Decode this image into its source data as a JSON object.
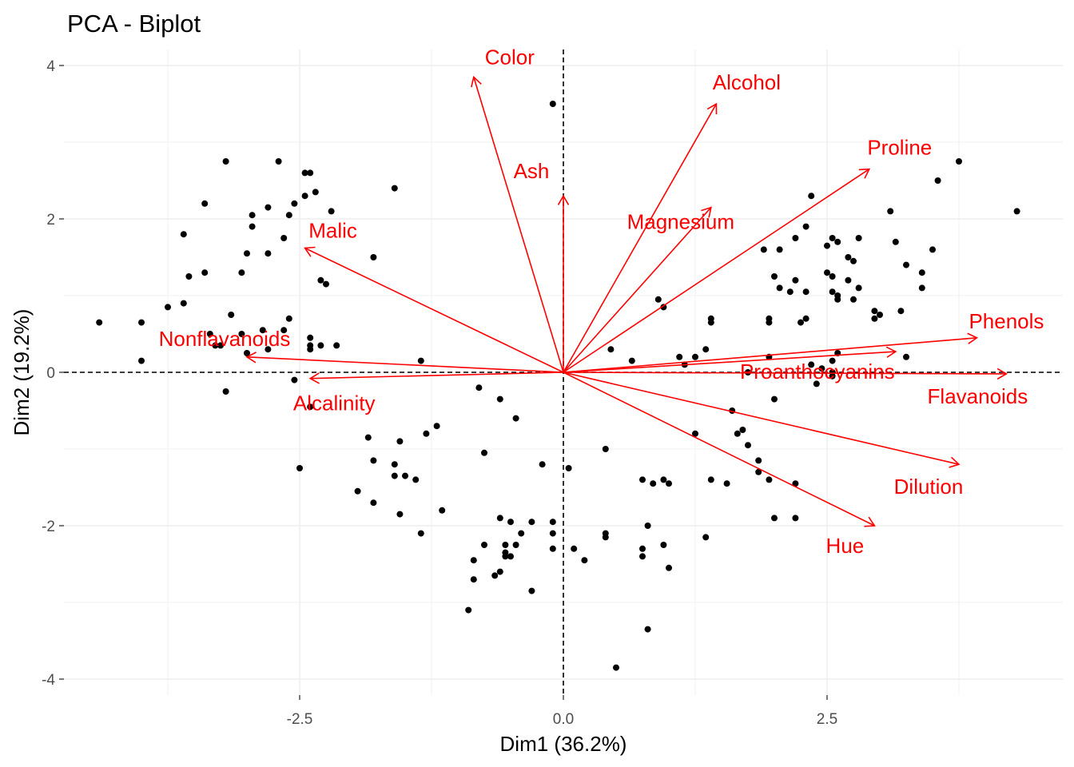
{
  "chart_data": {
    "type": "scatter",
    "title": "PCA - Biplot",
    "xlabel": "Dim1 (36.2%)",
    "ylabel": "Dim2 (19.2%)",
    "xlim": [
      -4.75,
      4.75
    ],
    "ylim": [
      -4.2,
      4.2
    ],
    "x_ticks": [
      {
        "value": -2.5,
        "label": "-2.5"
      },
      {
        "value": 0,
        "label": "0.0"
      },
      {
        "value": 2.5,
        "label": "2.5"
      }
    ],
    "y_ticks": [
      {
        "value": -4,
        "label": "-4"
      },
      {
        "value": -2,
        "label": "-2"
      },
      {
        "value": 0,
        "label": "0"
      },
      {
        "value": 2,
        "label": "2"
      },
      {
        "value": 4,
        "label": "4"
      }
    ],
    "grid": true,
    "reference_lines": "dashed at x=0 and y=0",
    "colors": {
      "points": "#000000",
      "arrows": "#ff0000",
      "grid": "#ebebeb"
    },
    "points": [
      [
        -0.1,
        3.5
      ],
      [
        -3.2,
        2.75
      ],
      [
        -2.7,
        2.75
      ],
      [
        -2.4,
        2.6
      ],
      [
        -2.45,
        2.6
      ],
      [
        -2.35,
        2.35
      ],
      [
        -2.45,
        2.3
      ],
      [
        -2.55,
        2.2
      ],
      [
        -3.4,
        2.2
      ],
      [
        -2.8,
        2.15
      ],
      [
        -2.95,
        2.05
      ],
      [
        -2.6,
        2.05
      ],
      [
        -2.2,
        2.1
      ],
      [
        -1.6,
        2.4
      ],
      [
        -3.6,
        1.8
      ],
      [
        -2.95,
        1.9
      ],
      [
        -2.65,
        1.75
      ],
      [
        -3.0,
        1.55
      ],
      [
        -2.8,
        1.55
      ],
      [
        -1.8,
        1.5
      ],
      [
        -3.55,
        1.25
      ],
      [
        -3.05,
        1.3
      ],
      [
        -3.4,
        1.3
      ],
      [
        -2.25,
        1.15
      ],
      [
        -2.3,
        1.2
      ],
      [
        -4.4,
        0.65
      ],
      [
        -3.75,
        0.85
      ],
      [
        -3.6,
        0.9
      ],
      [
        -3.15,
        0.75
      ],
      [
        -2.6,
        0.7
      ],
      [
        -2.65,
        0.55
      ],
      [
        -2.85,
        0.55
      ],
      [
        -3.05,
        0.5
      ],
      [
        -3.35,
        0.5
      ],
      [
        -2.4,
        0.45
      ],
      [
        -2.4,
        0.35
      ],
      [
        -2.3,
        0.35
      ],
      [
        -2.15,
        0.35
      ],
      [
        -3.25,
        0.35
      ],
      [
        -3.3,
        0.35
      ],
      [
        -2.8,
        0.3
      ],
      [
        -2.4,
        0.3
      ],
      [
        -3.0,
        0.25
      ],
      [
        -4.0,
        0.15
      ],
      [
        -4.0,
        0.65
      ],
      [
        -1.35,
        0.15
      ],
      [
        -2.55,
        -0.1
      ],
      [
        -3.2,
        -0.25
      ],
      [
        -2.4,
        -0.45
      ],
      [
        -2.5,
        -1.25
      ],
      [
        -0.8,
        -0.2
      ],
      [
        -0.6,
        -0.35
      ],
      [
        -0.45,
        -0.6
      ],
      [
        -1.2,
        -0.7
      ],
      [
        -1.3,
        -0.8
      ],
      [
        -1.85,
        -0.85
      ],
      [
        -1.55,
        -0.9
      ],
      [
        -1.8,
        -1.15
      ],
      [
        -1.6,
        -1.2
      ],
      [
        -0.75,
        -1.05
      ],
      [
        -0.2,
        -1.2
      ],
      [
        0.05,
        -1.25
      ],
      [
        0.4,
        -1.0
      ],
      [
        -1.6,
        -1.35
      ],
      [
        -1.5,
        -1.35
      ],
      [
        -1.4,
        -1.4
      ],
      [
        -1.95,
        -1.55
      ],
      [
        -1.8,
        -1.7
      ],
      [
        -1.55,
        -1.85
      ],
      [
        -1.15,
        -1.8
      ],
      [
        -1.35,
        -2.1
      ],
      [
        -0.6,
        -1.9
      ],
      [
        -0.5,
        -1.95
      ],
      [
        -0.3,
        -1.95
      ],
      [
        -0.1,
        -1.95
      ],
      [
        -0.4,
        -2.1
      ],
      [
        -0.55,
        -2.25
      ],
      [
        -0.75,
        -2.25
      ],
      [
        -0.55,
        -2.35
      ],
      [
        -0.45,
        -2.25
      ],
      [
        -0.5,
        -2.4
      ],
      [
        -0.55,
        -2.4
      ],
      [
        -0.85,
        -2.45
      ],
      [
        -0.1,
        -2.1
      ],
      [
        -0.1,
        -2.3
      ],
      [
        0.1,
        -2.3
      ],
      [
        0.2,
        -2.45
      ],
      [
        -0.6,
        -2.6
      ],
      [
        -0.65,
        -2.65
      ],
      [
        -0.85,
        -2.7
      ],
      [
        -0.3,
        -2.85
      ],
      [
        -0.9,
        -3.1
      ],
      [
        0.4,
        -2.15
      ],
      [
        0.4,
        -2.1
      ],
      [
        0.75,
        -2.3
      ],
      [
        0.75,
        -2.4
      ],
      [
        0.95,
        -2.25
      ],
      [
        0.8,
        -2.0
      ],
      [
        1.0,
        -2.55
      ],
      [
        0.8,
        -3.35
      ],
      [
        0.5,
        -3.85
      ],
      [
        0.45,
        0.3
      ],
      [
        0.65,
        0.15
      ],
      [
        0.9,
        0.95
      ],
      [
        0.95,
        0.85
      ],
      [
        1.1,
        0.2
      ],
      [
        1.15,
        0.1
      ],
      [
        1.25,
        0.2
      ],
      [
        1.35,
        0.3
      ],
      [
        1.4,
        0.65
      ],
      [
        1.4,
        0.7
      ],
      [
        1.25,
        -0.8
      ],
      [
        1.6,
        -0.5
      ],
      [
        1.65,
        -0.8
      ],
      [
        1.7,
        -0.75
      ],
      [
        1.75,
        -0.95
      ],
      [
        1.75,
        0.0
      ],
      [
        1.95,
        0.2
      ],
      [
        2.0,
        -0.35
      ],
      [
        1.95,
        0.65
      ],
      [
        1.95,
        0.7
      ],
      [
        2.25,
        0.65
      ],
      [
        2.35,
        0.1
      ],
      [
        2.4,
        -0.15
      ],
      [
        2.45,
        0.05
      ],
      [
        2.55,
        -0.05
      ],
      [
        2.55,
        0.15
      ],
      [
        2.6,
        0.25
      ],
      [
        2.55,
        0.0
      ],
      [
        0.75,
        -1.4
      ],
      [
        0.85,
        -1.45
      ],
      [
        0.95,
        -1.4
      ],
      [
        1.0,
        -1.45
      ],
      [
        1.4,
        -1.4
      ],
      [
        1.55,
        -1.45
      ],
      [
        1.85,
        -1.15
      ],
      [
        1.85,
        -1.3
      ],
      [
        1.95,
        -1.4
      ],
      [
        2.2,
        -1.45
      ],
      [
        2.0,
        -1.9
      ],
      [
        2.2,
        -1.9
      ],
      [
        1.35,
        -2.15
      ],
      [
        1.9,
        1.6
      ],
      [
        2.0,
        1.25
      ],
      [
        2.05,
        1.6
      ],
      [
        2.2,
        1.75
      ],
      [
        2.3,
        1.9
      ],
      [
        2.35,
        2.3
      ],
      [
        2.2,
        1.2
      ],
      [
        2.3,
        1.05
      ],
      [
        2.15,
        1.05
      ],
      [
        2.05,
        1.1
      ],
      [
        2.3,
        0.7
      ],
      [
        2.5,
        1.65
      ],
      [
        2.55,
        1.75
      ],
      [
        2.6,
        1.7
      ],
      [
        2.8,
        1.75
      ],
      [
        2.7,
        1.5
      ],
      [
        2.75,
        1.45
      ],
      [
        2.5,
        1.3
      ],
      [
        2.55,
        1.05
      ],
      [
        2.55,
        1.25
      ],
      [
        2.6,
        1.0
      ],
      [
        2.6,
        0.95
      ],
      [
        2.7,
        1.2
      ],
      [
        2.8,
        1.1
      ],
      [
        2.75,
        0.95
      ],
      [
        2.95,
        0.8
      ],
      [
        3.1,
        2.1
      ],
      [
        3.15,
        1.7
      ],
      [
        3.25,
        1.4
      ],
      [
        3.4,
        1.1
      ],
      [
        3.4,
        1.3
      ],
      [
        3.5,
        1.6
      ],
      [
        3.55,
        2.5
      ],
      [
        3.75,
        2.75
      ],
      [
        4.3,
        2.1
      ],
      [
        3.2,
        0.8
      ],
      [
        3.25,
        0.2
      ],
      [
        2.95,
        0.7
      ],
      [
        3.0,
        0.75
      ]
    ],
    "variables": [
      {
        "name": "Color",
        "x": -0.85,
        "y": 3.85
      },
      {
        "name": "Alcohol",
        "x": 1.45,
        "y": 3.5
      },
      {
        "name": "Proline",
        "x": 2.9,
        "y": 2.65
      },
      {
        "name": "Ash",
        "x": 0.0,
        "y": 2.3
      },
      {
        "name": "Magnesium",
        "x": 1.4,
        "y": 2.15
      },
      {
        "name": "Malic",
        "x": -2.45,
        "y": 1.62
      },
      {
        "name": "Nonflavanoids",
        "x": -3.0,
        "y": 0.2
      },
      {
        "name": "Alcalinity",
        "x": -2.4,
        "y": -0.08
      },
      {
        "name": "Phenols",
        "x": 3.92,
        "y": 0.45
      },
      {
        "name": "Proanthocyanins",
        "x": 3.15,
        "y": 0.27
      },
      {
        "name": "Flavanoids",
        "x": 4.2,
        "y": -0.02
      },
      {
        "name": "Dilution",
        "x": 3.75,
        "y": -1.2
      },
      {
        "name": "Hue",
        "x": 2.95,
        "y": -2.0
      }
    ]
  }
}
